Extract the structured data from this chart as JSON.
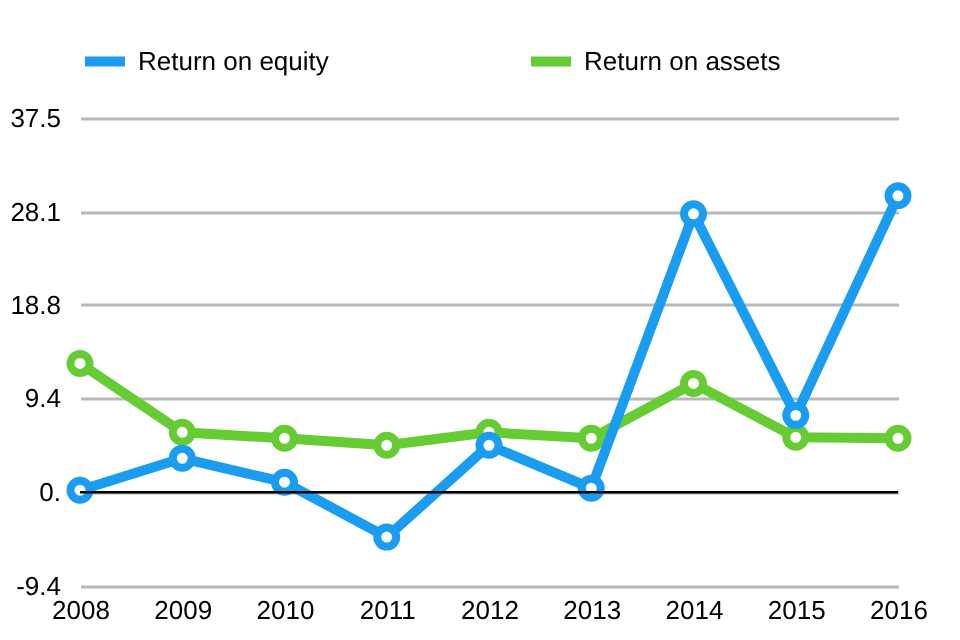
{
  "chart_data": {
    "type": "line",
    "categories": [
      "2008",
      "2009",
      "2010",
      "2011",
      "2012",
      "2013",
      "2014",
      "2015",
      "2016"
    ],
    "series": [
      {
        "name": "Return on equity",
        "color": "#1a9cf0",
        "values": [
          0.2,
          3.4,
          1.0,
          -4.5,
          4.7,
          0.4,
          27.9,
          7.7,
          29.7
        ]
      },
      {
        "name": "Return on assets",
        "color": "#66cc33",
        "values": [
          12.9,
          6.0,
          5.4,
          4.7,
          6.0,
          5.4,
          10.9,
          5.5,
          5.4
        ]
      }
    ],
    "ylim": [
      -9.4,
      37.5
    ],
    "yticks": [
      -9.4,
      {
        "value": 0,
        "label": "0."
      },
      9.4,
      18.8,
      28.1,
      37.5
    ],
    "ref_lines": [
      {
        "axis": "y",
        "value": 0,
        "color": "#000000"
      }
    ],
    "grid": "y",
    "legend": "top",
    "marker": "circle",
    "line_style": "solid"
  }
}
